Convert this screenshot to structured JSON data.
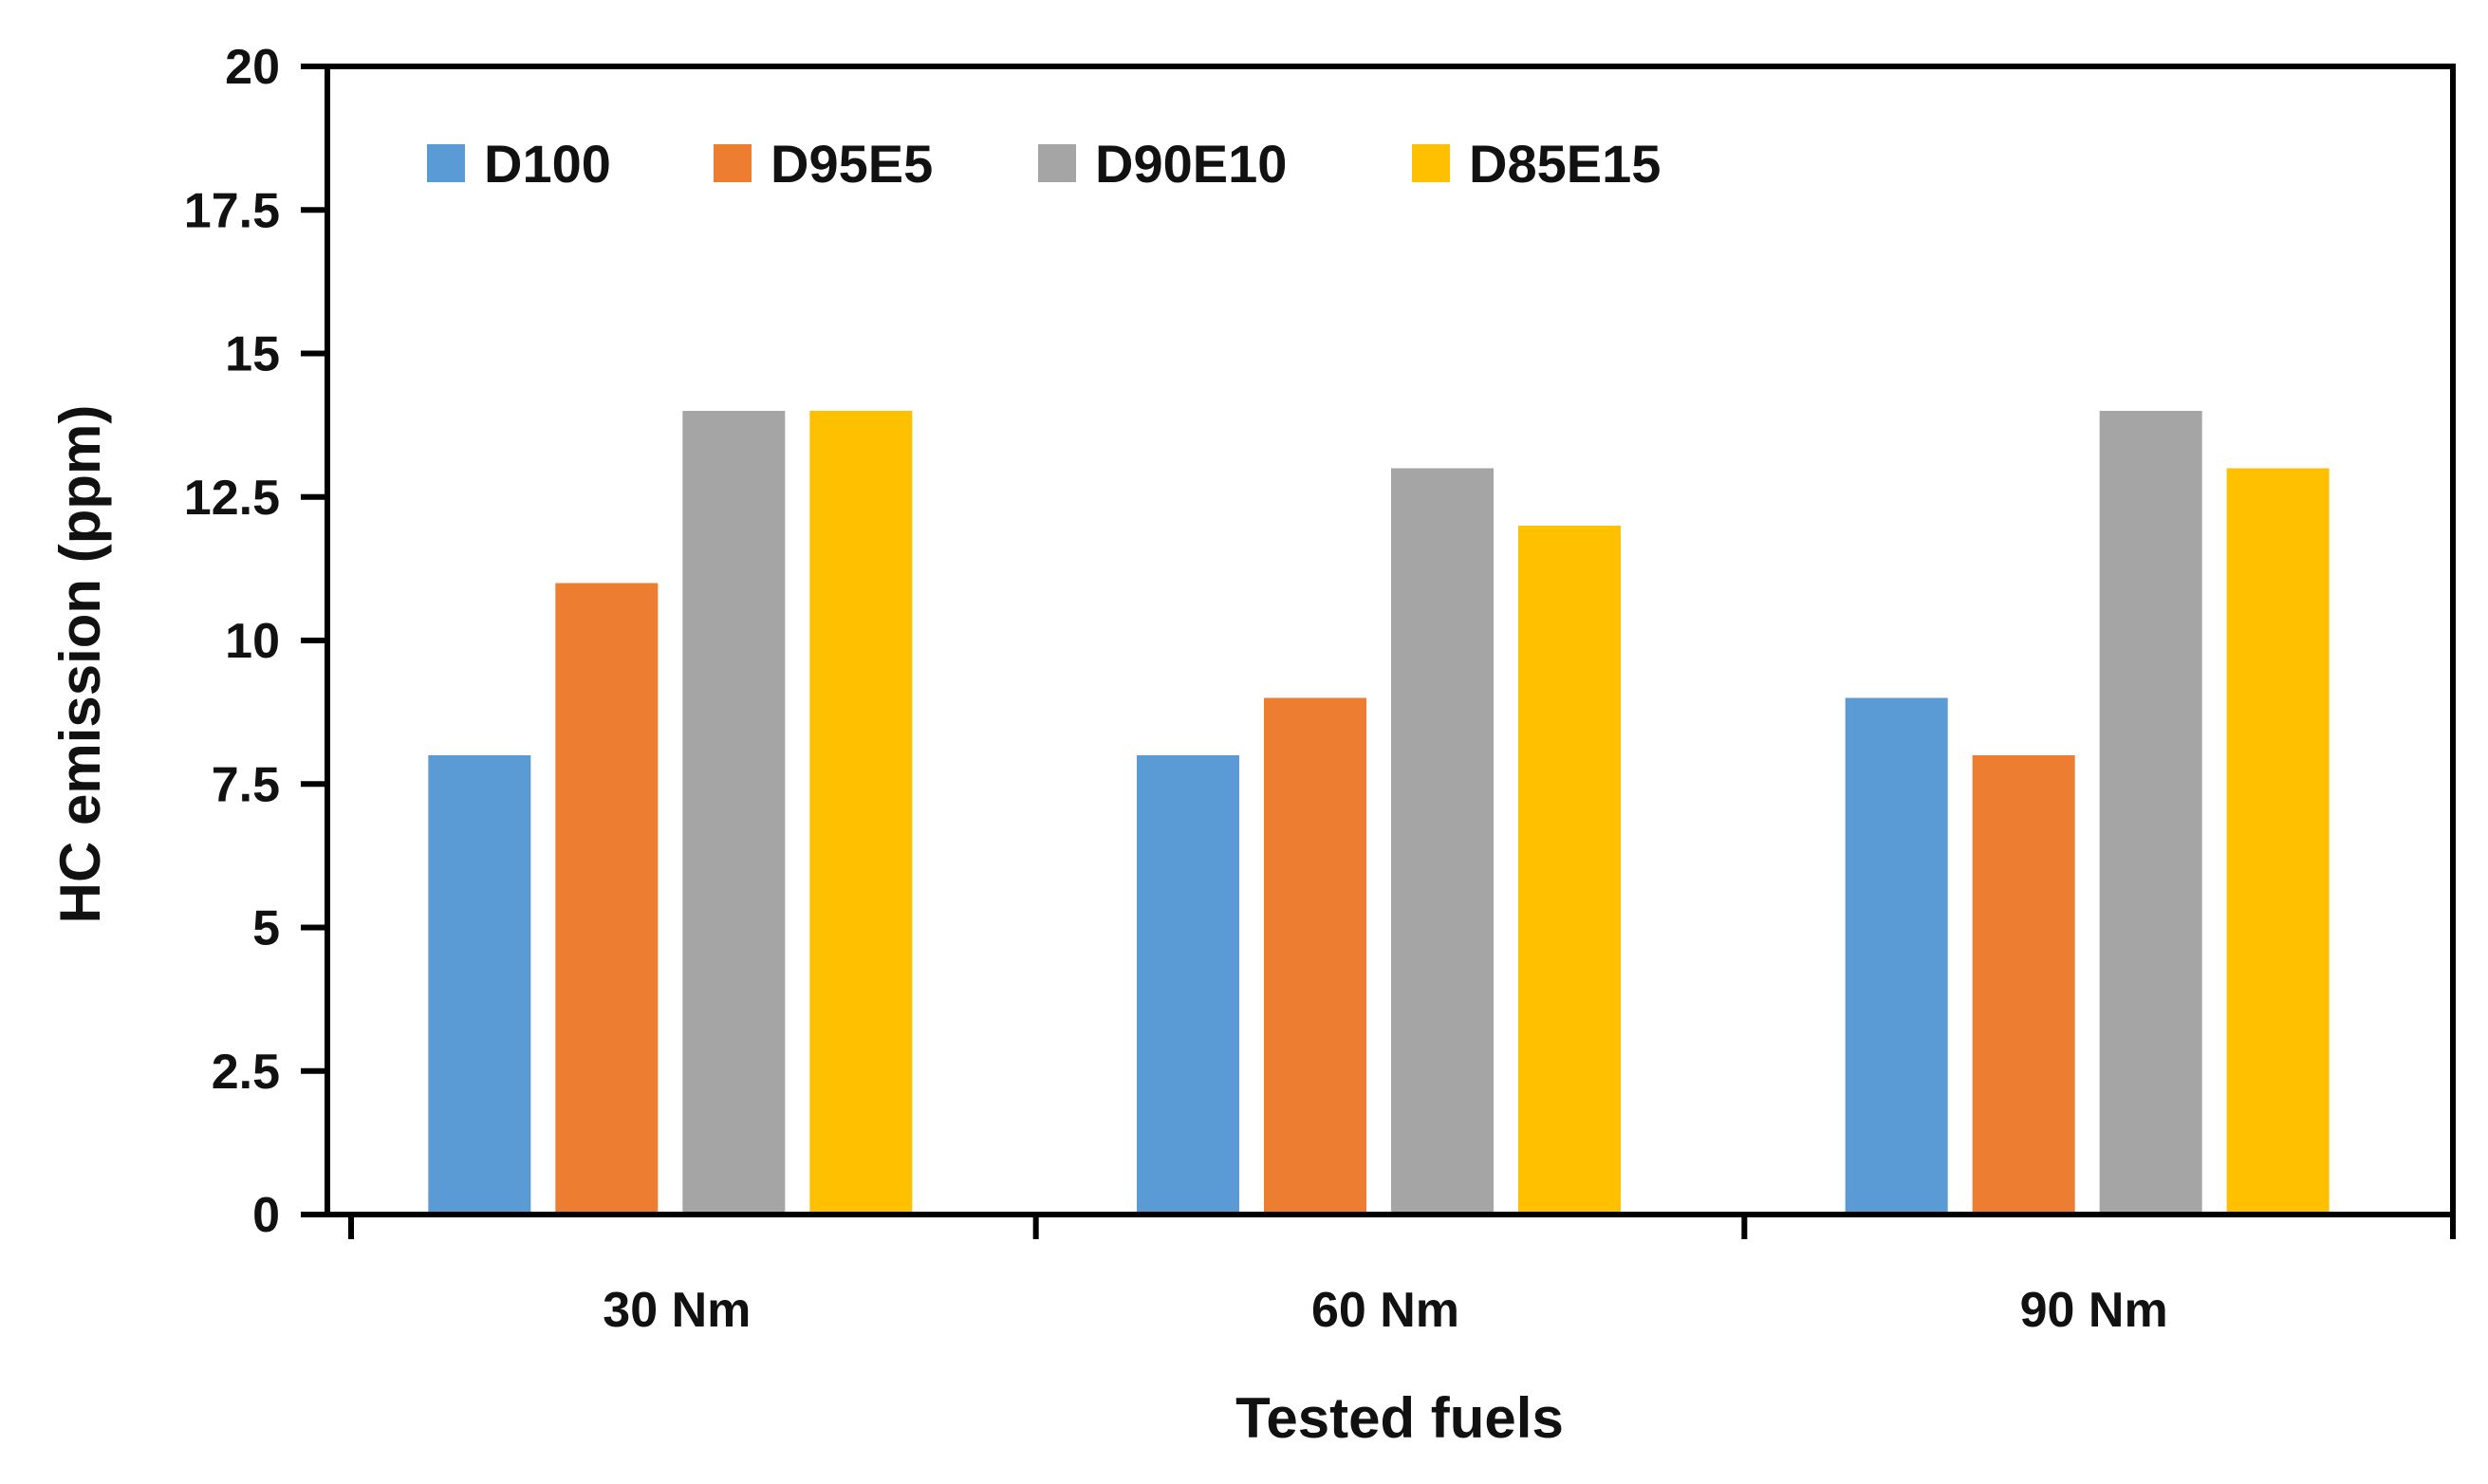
{
  "chart_data": {
    "type": "bar",
    "title": "",
    "xlabel": "Tested fuels",
    "ylabel": "HC emission (ppm)",
    "ylim": [
      0,
      20
    ],
    "yticks": [
      "0",
      "2.5",
      "5",
      "7.5",
      "10",
      "12.5",
      "15",
      "17.5",
      "20"
    ],
    "categories": [
      "30 Nm",
      "60 Nm",
      "90 Nm"
    ],
    "grid": false,
    "legend_position": "top",
    "series": [
      {
        "name": "D100",
        "color": "#5B9BD5",
        "values": [
          8,
          8,
          9
        ]
      },
      {
        "name": "D95E5",
        "color": "#ED7D31",
        "values": [
          11,
          9,
          8
        ]
      },
      {
        "name": "D90E10",
        "color": "#A5A5A5",
        "values": [
          14,
          13,
          14
        ]
      },
      {
        "name": "D85E15",
        "color": "#FFC000",
        "values": [
          14,
          12,
          13
        ]
      }
    ]
  }
}
